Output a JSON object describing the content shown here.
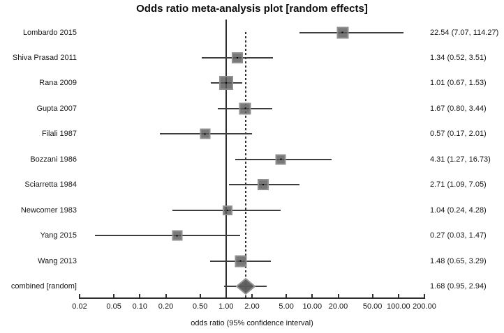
{
  "title": "Odds ratio meta-analysis plot [random effects]",
  "xlabel": "odds ratio (95% confidence interval)",
  "colors": {
    "marker_fill": "#5a5a5a",
    "marker_halo": "#969696",
    "ci_line": "#3d3d3d",
    "axis_line": "#2e2e2e",
    "text": "#151515",
    "background": "#ffffff"
  },
  "chart_data": {
    "type": "scatter",
    "subtype": "forest-plot",
    "x_scale": "log",
    "xlim": [
      0.02,
      200
    ],
    "x_ticks": [
      0.02,
      0.05,
      0.1,
      0.2,
      0.5,
      1.0,
      2.0,
      5.0,
      10.0,
      20.0,
      50.0,
      100.0,
      200.0
    ],
    "x_tick_labels": [
      "0.02",
      "0.05",
      "0.10",
      "0.20",
      "0.50",
      "1.00",
      "2.00",
      "5.00",
      "10.00",
      "20.00",
      "50.00",
      "100.00",
      "200.00"
    ],
    "reference_line_value": 1.0,
    "pooled_line_value": 1.68,
    "grid": false,
    "legend": "none",
    "studies": [
      {
        "label": "Lombardo 2015",
        "or": 22.54,
        "ci_low": 7.07,
        "ci_high": 114.27,
        "display": "22.54 (7.07, 114.27)",
        "marker": "square",
        "size": 17
      },
      {
        "label": "Shiva Prasad 2011",
        "or": 1.34,
        "ci_low": 0.52,
        "ci_high": 3.51,
        "display": "1.34 (0.52, 3.51)",
        "marker": "square",
        "size": 16
      },
      {
        "label": "Rana 2009",
        "or": 1.01,
        "ci_low": 0.67,
        "ci_high": 1.53,
        "display": "1.01 (0.67, 1.53)",
        "marker": "square",
        "size": 20
      },
      {
        "label": "Gupta 2007",
        "or": 1.67,
        "ci_low": 0.8,
        "ci_high": 3.44,
        "display": "1.67 (0.80, 3.44)",
        "marker": "square",
        "size": 17
      },
      {
        "label": "Filali 1987",
        "or": 0.57,
        "ci_low": 0.17,
        "ci_high": 2.01,
        "display": "0.57 (0.17, 2.01)",
        "marker": "square",
        "size": 15
      },
      {
        "label": "Bozzani 1986",
        "or": 4.31,
        "ci_low": 1.27,
        "ci_high": 16.73,
        "display": "4.31 (1.27, 16.73)",
        "marker": "square",
        "size": 15
      },
      {
        "label": "Sciarretta 1984",
        "or": 2.71,
        "ci_low": 1.09,
        "ci_high": 7.05,
        "display": "2.71 (1.09, 7.05)",
        "marker": "square",
        "size": 16
      },
      {
        "label": "Newcomer 1983",
        "or": 1.04,
        "ci_low": 0.24,
        "ci_high": 4.28,
        "display": "1.04 (0.24, 4.28)",
        "marker": "square",
        "size": 14
      },
      {
        "label": "Yang 2015",
        "or": 0.27,
        "ci_low": 0.03,
        "ci_high": 1.47,
        "display": "0.27 (0.03, 1.47)",
        "marker": "square",
        "size": 15
      },
      {
        "label": "Wang 2013",
        "or": 1.48,
        "ci_low": 0.65,
        "ci_high": 3.29,
        "display": "1.48 (0.65, 3.29)",
        "marker": "square",
        "size": 17
      },
      {
        "label": "combined [random]",
        "or": 1.68,
        "ci_low": 0.95,
        "ci_high": 2.94,
        "display": "1.68 (0.95, 2.94)",
        "marker": "diamond",
        "size": 24
      }
    ]
  }
}
